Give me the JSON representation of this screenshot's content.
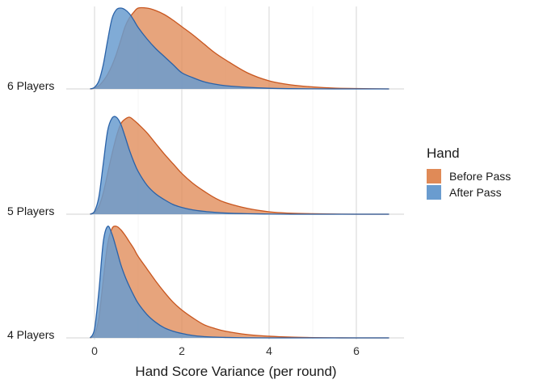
{
  "chart_data": {
    "type": "area",
    "subtype": "ridgeline-density",
    "title": "",
    "xlabel": "Hand Score Variance (per round)",
    "ylabel": "",
    "xlim": [
      -0.3,
      6.75
    ],
    "x_ticks": [
      0,
      2,
      4,
      6
    ],
    "grid": "vertical major gridlines",
    "legend": {
      "title": "Hand",
      "placement": "right",
      "entries": [
        {
          "name": "Before Pass",
          "color": "#e08a57"
        },
        {
          "name": "After Pass",
          "color": "#6a9ccf"
        }
      ]
    },
    "x": [
      -0.1,
      0.0,
      0.1,
      0.2,
      0.3,
      0.4,
      0.5,
      0.6,
      0.7,
      0.8,
      0.9,
      1.0,
      1.2,
      1.4,
      1.6,
      1.8,
      2.0,
      2.25,
      2.5,
      2.75,
      3.0,
      3.5,
      4.0,
      4.5,
      5.0,
      5.5,
      6.0,
      6.75
    ],
    "groups": [
      {
        "name": "6 Players",
        "series": [
          {
            "name": "Before Pass",
            "values": [
              0.0,
              0.01,
              0.04,
              0.1,
              0.18,
              0.29,
              0.43,
              0.6,
              0.77,
              0.88,
              0.95,
              1.0,
              1.0,
              0.97,
              0.92,
              0.85,
              0.77,
              0.67,
              0.56,
              0.45,
              0.36,
              0.2,
              0.1,
              0.05,
              0.025,
              0.01,
              0.005,
              0.0
            ]
          },
          {
            "name": "After Pass",
            "values": [
              0.0,
              0.02,
              0.1,
              0.3,
              0.6,
              0.87,
              0.98,
              1.0,
              0.98,
              0.93,
              0.85,
              0.76,
              0.62,
              0.5,
              0.4,
              0.3,
              0.2,
              0.14,
              0.09,
              0.06,
              0.04,
              0.02,
              0.008,
              0.003,
              0.001,
              0.0,
              0.0,
              0.0
            ]
          }
        ]
      },
      {
        "name": "5 Players",
        "series": [
          {
            "name": "Before Pass",
            "values": [
              0.0,
              0.02,
              0.08,
              0.22,
              0.42,
              0.62,
              0.8,
              0.93,
              0.98,
              1.0,
              0.97,
              0.93,
              0.84,
              0.73,
              0.62,
              0.52,
              0.42,
              0.32,
              0.24,
              0.17,
              0.12,
              0.06,
              0.025,
              0.01,
              0.005,
              0.002,
              0.0,
              0.0
            ]
          },
          {
            "name": "After Pass",
            "values": [
              0.0,
              0.03,
              0.18,
              0.52,
              0.86,
              0.99,
              1.0,
              0.93,
              0.8,
              0.66,
              0.54,
              0.44,
              0.3,
              0.21,
              0.15,
              0.1,
              0.07,
              0.045,
              0.03,
              0.02,
              0.012,
              0.005,
              0.002,
              0.0,
              0.0,
              0.0,
              0.0,
              0.0
            ]
          }
        ]
      },
      {
        "name": "4 Players",
        "series": [
          {
            "name": "Before Pass",
            "values": [
              0.0,
              0.03,
              0.18,
              0.52,
              0.84,
              0.98,
              1.0,
              0.97,
              0.92,
              0.86,
              0.8,
              0.73,
              0.62,
              0.51,
              0.41,
              0.32,
              0.25,
              0.18,
              0.12,
              0.085,
              0.06,
              0.03,
              0.015,
              0.007,
              0.003,
              0.001,
              0.0,
              0.0
            ]
          },
          {
            "name": "After Pass",
            "values": [
              0.0,
              0.08,
              0.42,
              0.86,
              1.0,
              0.93,
              0.8,
              0.66,
              0.55,
              0.46,
              0.38,
              0.31,
              0.21,
              0.14,
              0.09,
              0.06,
              0.04,
              0.022,
              0.012,
              0.007,
              0.004,
              0.001,
              0.0,
              0.0,
              0.0,
              0.0,
              0.0,
              0.0
            ]
          }
        ]
      }
    ]
  }
}
